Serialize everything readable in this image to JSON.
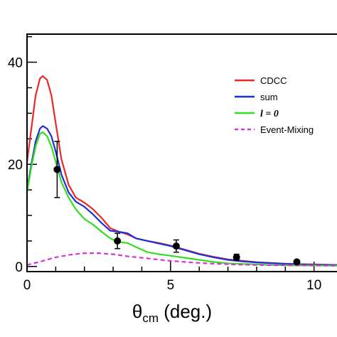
{
  "chart_data": {
    "type": "line",
    "title": "",
    "xlabel": {
      "main": "θ",
      "sub": "cm",
      "rest": " (deg.)"
    },
    "ylabel": "",
    "xlim": [
      0,
      10.8
    ],
    "ylim": [
      -1,
      45.5
    ],
    "x_ticks": [
      {
        "value": 0,
        "label": "0"
      },
      {
        "value": 5,
        "label": "5"
      },
      {
        "value": 10,
        "label": "10"
      }
    ],
    "y_ticks": [
      {
        "value": 0,
        "label": "0"
      },
      {
        "value": 20,
        "label": "20"
      },
      {
        "value": 40,
        "label": "40"
      }
    ],
    "x_minor_step": 1,
    "y_minor_step": 5,
    "grid": false,
    "legend_position": "top-right",
    "series": [
      {
        "name": "CDCC",
        "color": "#e8292a",
        "dash": "solid",
        "points": [
          [
            0,
            20.5
          ],
          [
            0.15,
            27
          ],
          [
            0.3,
            33.5
          ],
          [
            0.45,
            36.8
          ],
          [
            0.55,
            37.3
          ],
          [
            0.7,
            36.5
          ],
          [
            0.85,
            33.5
          ],
          [
            1.0,
            28
          ],
          [
            1.2,
            21
          ],
          [
            1.45,
            16
          ],
          [
            1.7,
            13.5
          ],
          [
            2.0,
            12.5
          ],
          [
            2.3,
            11.2
          ],
          [
            2.6,
            9.5
          ],
          [
            2.9,
            7.5
          ],
          [
            3.2,
            6.8
          ],
          [
            3.5,
            6.3
          ],
          [
            3.8,
            5.5
          ],
          [
            4.2,
            5.0
          ],
          [
            4.6,
            4.6
          ],
          [
            5.0,
            4.1
          ],
          [
            5.5,
            3.3
          ],
          [
            6.0,
            2.5
          ],
          [
            6.5,
            1.9
          ],
          [
            7.0,
            1.4
          ],
          [
            7.5,
            1.1
          ],
          [
            8.0,
            0.85
          ],
          [
            8.5,
            0.7
          ],
          [
            9.0,
            0.55
          ],
          [
            9.5,
            0.45
          ],
          [
            10.0,
            0.4
          ],
          [
            10.8,
            0.3
          ]
        ]
      },
      {
        "name": "sum",
        "color": "#1f2fd6",
        "dash": "solid",
        "points": [
          [
            0,
            15
          ],
          [
            0.15,
            20
          ],
          [
            0.3,
            24.5
          ],
          [
            0.45,
            27
          ],
          [
            0.55,
            27.5
          ],
          [
            0.7,
            27
          ],
          [
            0.85,
            25.5
          ],
          [
            1.0,
            22.5
          ],
          [
            1.2,
            18
          ],
          [
            1.45,
            14.5
          ],
          [
            1.7,
            12.7
          ],
          [
            2.0,
            11.7
          ],
          [
            2.3,
            10.2
          ],
          [
            2.6,
            8.5
          ],
          [
            2.9,
            7.0
          ],
          [
            3.2,
            6.8
          ],
          [
            3.5,
            6.5
          ],
          [
            3.8,
            5.5
          ],
          [
            4.2,
            5.0
          ],
          [
            4.6,
            4.5
          ],
          [
            5.0,
            4.0
          ],
          [
            5.5,
            3.2
          ],
          [
            6.0,
            2.4
          ],
          [
            6.5,
            1.8
          ],
          [
            7.0,
            1.3
          ],
          [
            7.5,
            1.0
          ],
          [
            8.0,
            0.8
          ],
          [
            8.5,
            0.65
          ],
          [
            9.0,
            0.5
          ],
          [
            9.5,
            0.4
          ],
          [
            10.0,
            0.35
          ],
          [
            10.8,
            0.3
          ]
        ]
      },
      {
        "name": "l = 0",
        "color": "#33dd22",
        "dash": "solid",
        "points": [
          [
            0,
            14.5
          ],
          [
            0.15,
            19.5
          ],
          [
            0.3,
            23.5
          ],
          [
            0.45,
            26
          ],
          [
            0.55,
            26.3
          ],
          [
            0.7,
            25.5
          ],
          [
            0.85,
            23.5
          ],
          [
            1.0,
            20.5
          ],
          [
            1.2,
            16.5
          ],
          [
            1.45,
            13.5
          ],
          [
            1.7,
            11.2
          ],
          [
            2.0,
            9.3
          ],
          [
            2.3,
            8.2
          ],
          [
            2.6,
            6.8
          ],
          [
            2.9,
            5.5
          ],
          [
            3.2,
            4.8
          ],
          [
            3.5,
            4.6
          ],
          [
            3.8,
            3.8
          ],
          [
            4.2,
            2.8
          ],
          [
            4.6,
            2.4
          ],
          [
            5.0,
            2.1
          ],
          [
            5.5,
            1.7
          ],
          [
            6.0,
            1.3
          ],
          [
            6.5,
            0.9
          ],
          [
            7.0,
            0.6
          ],
          [
            7.5,
            0.5
          ],
          [
            8.0,
            0.4
          ],
          [
            8.5,
            0.3
          ],
          [
            9.0,
            0.25
          ],
          [
            9.5,
            0.2
          ],
          [
            10.0,
            0.2
          ],
          [
            10.8,
            0.15
          ]
        ]
      },
      {
        "name": "Event-Mixing",
        "color": "#d436d4",
        "dash": "dashed",
        "points": [
          [
            0,
            0.3
          ],
          [
            0.5,
            1.0
          ],
          [
            1.0,
            1.8
          ],
          [
            1.5,
            2.3
          ],
          [
            2.0,
            2.6
          ],
          [
            2.5,
            2.6
          ],
          [
            3.0,
            2.4
          ],
          [
            3.5,
            2.0
          ],
          [
            4.0,
            1.7
          ],
          [
            4.5,
            1.4
          ],
          [
            5.0,
            1.1
          ],
          [
            5.5,
            0.9
          ],
          [
            6.0,
            0.7
          ],
          [
            6.5,
            0.55
          ],
          [
            7.0,
            0.45
          ],
          [
            7.5,
            0.35
          ],
          [
            8.0,
            0.3
          ],
          [
            8.5,
            0.25
          ],
          [
            9.0,
            0.22
          ],
          [
            9.5,
            0.2
          ],
          [
            10.0,
            0.18
          ],
          [
            10.8,
            0.15
          ]
        ]
      }
    ],
    "data_points": [
      {
        "x": 1.05,
        "y": 19,
        "err_low": 5.5,
        "err_high": 5.5
      },
      {
        "x": 3.15,
        "y": 5.0,
        "err_low": 1.5,
        "err_high": 1.5
      },
      {
        "x": 5.2,
        "y": 4.0,
        "err_low": 1.2,
        "err_high": 1.2
      },
      {
        "x": 7.3,
        "y": 1.8,
        "err_low": 0.6,
        "err_high": 0.6
      },
      {
        "x": 9.4,
        "y": 0.9,
        "err_low": 0.3,
        "err_high": 0.3
      }
    ],
    "legend_entries": [
      {
        "label": "CDCC",
        "color": "#e8292a",
        "dash": "solid",
        "italic": false
      },
      {
        "label": "sum",
        "color": "#1f2fd6",
        "dash": "solid",
        "italic": false
      },
      {
        "label": "l = 0",
        "color": "#33dd22",
        "dash": "solid",
        "italic": true
      },
      {
        "label": "Event-Mixing",
        "color": "#d436d4",
        "dash": "dashed",
        "italic": false
      }
    ]
  }
}
